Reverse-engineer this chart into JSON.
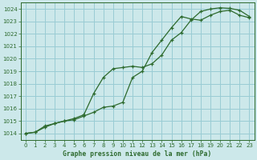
{
  "title": "Graphe pression niveau de la mer (hPa)",
  "bg_color": "#cce8ea",
  "grid_color": "#99ccd4",
  "line_color": "#2d6a2d",
  "xlim": [
    -0.5,
    23.5
  ],
  "ylim": [
    1013.5,
    1024.5
  ],
  "xticks": [
    0,
    1,
    2,
    3,
    4,
    5,
    6,
    7,
    8,
    9,
    10,
    11,
    12,
    13,
    14,
    15,
    16,
    17,
    18,
    19,
    20,
    21,
    22,
    23
  ],
  "yticks": [
    1014,
    1015,
    1016,
    1017,
    1018,
    1019,
    1020,
    1021,
    1022,
    1023,
    1024
  ],
  "line1_x": [
    0,
    1,
    2,
    3,
    4,
    5,
    6,
    7,
    8,
    9,
    10,
    11,
    12,
    13,
    14,
    15,
    16,
    17,
    18,
    19,
    20,
    21,
    22,
    23
  ],
  "line1_y": [
    1014.0,
    1014.1,
    1014.5,
    1014.8,
    1015.0,
    1015.1,
    1015.4,
    1015.7,
    1016.1,
    1016.2,
    1016.5,
    1018.5,
    1019.0,
    1020.5,
    1021.5,
    1022.5,
    1023.4,
    1023.2,
    1023.1,
    1023.5,
    1023.8,
    1023.9,
    1023.5,
    1023.3
  ],
  "line2_x": [
    0,
    1,
    2,
    3,
    4,
    5,
    6,
    7,
    8,
    9,
    10,
    11,
    12,
    13,
    14,
    15,
    16,
    17,
    18,
    19,
    20,
    21,
    22,
    23
  ],
  "line2_y": [
    1014.0,
    1014.1,
    1014.6,
    1014.8,
    1015.0,
    1015.2,
    1015.5,
    1017.2,
    1018.5,
    1019.2,
    1019.3,
    1019.4,
    1019.3,
    1019.6,
    1020.3,
    1021.5,
    1022.1,
    1023.1,
    1023.8,
    1024.0,
    1024.1,
    1024.05,
    1023.9,
    1023.4
  ]
}
